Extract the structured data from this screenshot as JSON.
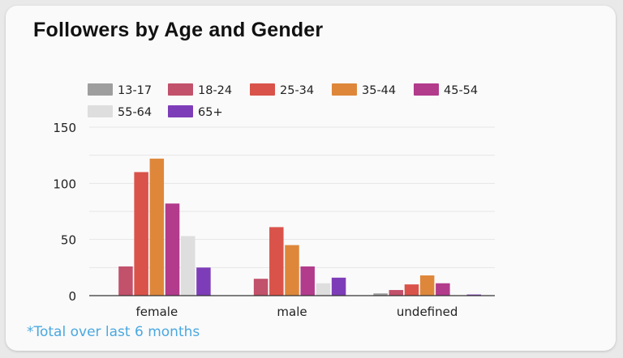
{
  "card": {
    "title": "Followers by Age and Gender",
    "footnote": "*Total over last 6 months"
  },
  "chart_data": {
    "type": "bar",
    "title": "Followers by Age and Gender",
    "xlabel": "",
    "ylabel": "",
    "categories": [
      "female",
      "male",
      "undefined"
    ],
    "ylim": [
      0,
      150
    ],
    "yticks": [
      0,
      50,
      100,
      150
    ],
    "grid": true,
    "legend_position": "top",
    "series": [
      {
        "name": "13-17",
        "color": "#9e9e9e",
        "values": [
          0,
          0,
          2
        ]
      },
      {
        "name": "18-24",
        "color": "#c2516b",
        "values": [
          26,
          15,
          5
        ]
      },
      {
        "name": "25-34",
        "color": "#d9534a",
        "values": [
          110,
          61,
          10
        ]
      },
      {
        "name": "35-44",
        "color": "#de873b",
        "values": [
          122,
          45,
          18
        ]
      },
      {
        "name": "45-54",
        "color": "#b23b8c",
        "values": [
          82,
          26,
          11
        ]
      },
      {
        "name": "55-64",
        "color": "#dedede",
        "values": [
          53,
          11,
          0
        ]
      },
      {
        "name": "65+",
        "color": "#7e3db8",
        "values": [
          25,
          16,
          1
        ]
      }
    ]
  }
}
